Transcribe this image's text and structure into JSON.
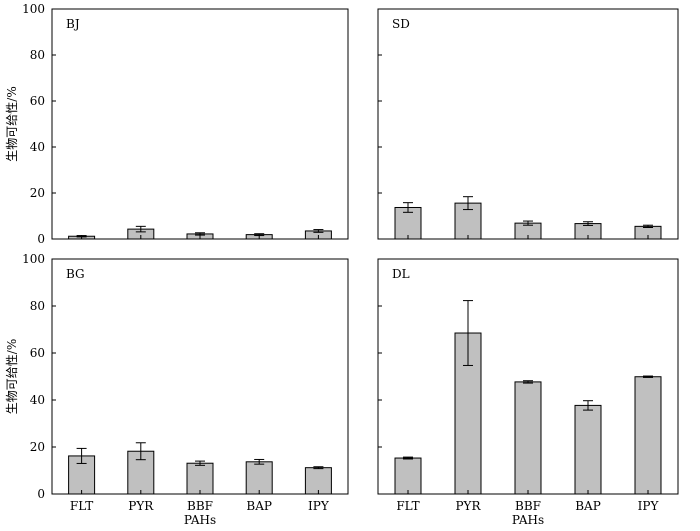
{
  "chart_data": [
    {
      "type": "bar",
      "panel_label": "BJ",
      "categories": [
        "FLT",
        "PYR",
        "BBF",
        "BAP",
        "IPY"
      ],
      "values": [
        1.2,
        4.3,
        2.2,
        1.9,
        3.5
      ],
      "errors": [
        0.3,
        1.2,
        0.5,
        0.4,
        0.6
      ],
      "ylabel": "生物可给性/%",
      "xlabel": "",
      "ylim": [
        0,
        100
      ],
      "yticks": [
        "0",
        "20",
        "40",
        "60",
        "80",
        "100"
      ],
      "show_x_tick_labels": false
    },
    {
      "type": "bar",
      "panel_label": "SD",
      "categories": [
        "FLT",
        "PYR",
        "BBF",
        "BAP",
        "IPY"
      ],
      "values": [
        13.7,
        15.6,
        6.9,
        6.7,
        5.5
      ],
      "errors": [
        2.1,
        2.8,
        0.9,
        0.8,
        0.5
      ],
      "ylabel": "",
      "xlabel": "",
      "ylim": [
        0,
        100
      ],
      "yticks": [],
      "show_x_tick_labels": false
    },
    {
      "type": "bar",
      "panel_label": "BG",
      "categories": [
        "FLT",
        "PYR",
        "BBF",
        "BAP",
        "IPY"
      ],
      "values": [
        16.2,
        18.2,
        13.1,
        13.7,
        11.2
      ],
      "errors": [
        3.2,
        3.6,
        0.9,
        1.0,
        0.4
      ],
      "ylabel": "生物可给性/%",
      "xlabel": "PAHs",
      "ylim": [
        0,
        100
      ],
      "yticks": [
        "0",
        "20",
        "40",
        "60",
        "80",
        "100"
      ],
      "show_x_tick_labels": true
    },
    {
      "type": "bar",
      "panel_label": "DL",
      "categories": [
        "FLT",
        "PYR",
        "BBF",
        "BAP",
        "IPY"
      ],
      "values": [
        15.3,
        68.5,
        47.7,
        37.7,
        49.9
      ],
      "errors": [
        0.4,
        13.8,
        0.5,
        2.0,
        0.3
      ],
      "ylabel": "",
      "xlabel": "PAHs",
      "ylim": [
        0,
        100
      ],
      "yticks": [],
      "show_x_tick_labels": true
    }
  ],
  "colors": {
    "bar_fill": "#c0c0c0",
    "stroke": "#000000",
    "background": "#ffffff"
  }
}
